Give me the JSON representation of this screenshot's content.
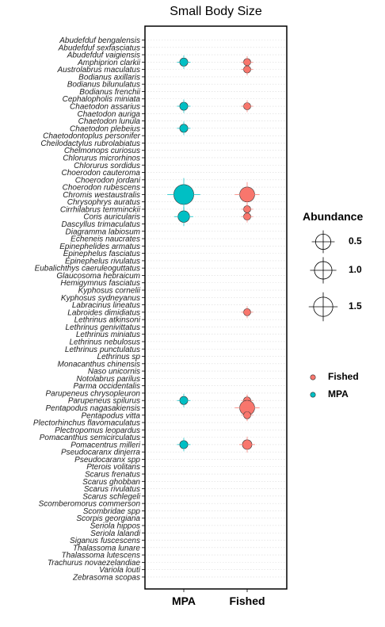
{
  "chart_data": {
    "type": "scatter",
    "title": "Small Body Size",
    "xlabel": "",
    "ylabel": "",
    "categories_x": [
      "MPA",
      "Fished"
    ],
    "species": [
      "Abudefduf bengalensis",
      "Abudefduf sexfasciatus",
      "Abudefduf vaigiensis",
      "Amphiprion clarkii",
      "Austrolabrus maculatus",
      "Bodianus axillaris",
      "Bodianus bilunulatus",
      "Bodianus frenchii",
      "Cephalopholis miniata",
      "Chaetodon assarius",
      "Chaetodon auriga",
      "Chaetodon lunula",
      "Chaetodon plebeius",
      "Chaetodontoplus personifer",
      "Cheilodactylus rubrolabiatus",
      "Chelmonops curiosus",
      "Chlorurus microrhinos",
      "Chlorurus sordidus",
      "Choerodon cauteroma",
      "Choerodon jordani",
      "Choerodon rubescens",
      "Chromis westaustralis",
      "Chrysophrys auratus",
      "Cirrhilabrus temminckii",
      "Coris auricularis",
      "Dascyllus trimaculatus",
      "Diagramma labiosum",
      "Echeneis naucrates",
      "Epinephelides armatus",
      "Epinephelus fasciatus",
      "Epinephelus rivulatus",
      "Eubalichthys caeruleoguttatus",
      "Glaucosoma hebraicum",
      "Hemigymnus fasciatus",
      "Kyphosus cornelii",
      "Kyphosus sydneyanus",
      "Labracinus lineatus",
      "Labroides dimidiatus",
      "Lethrinus atkinsoni",
      "Lethrinus genivittatus",
      "Lethrinus miniatus",
      "Lethrinus nebulosus",
      "Lethrinus punctulatus",
      "Lethrinus sp",
      "Monacanthus chinensis",
      "Naso unicornis",
      "Notolabrus parilus",
      "Parma occidentalis",
      "Parupeneus chrysopleuron",
      "Parupeneus spilurus",
      "Pentapodus nagasakiensis",
      "Pentapodus vitta",
      "Plectorhinchus flavomaculatus",
      "Plectropomus leopardus",
      "Pomacanthus semicirculatus",
      "Pomacentrus milleri",
      "Pseudocaranx dinjerra",
      "Pseudocaranx spp",
      "Pterois volitans",
      "Scarus frenatus",
      "Scarus ghobban",
      "Scarus rivulatus",
      "Scarus schlegeli",
      "Scomberomorus commerson",
      "Scombridae spp",
      "Scorpis georgiana",
      "Seriola hippos",
      "Seriola lalandi",
      "Siganus fuscescens",
      "Thalassoma lunare",
      "Thalassoma lutescens",
      "Trachurus novaezelandiae",
      "Variola louti",
      "Zebrasoma scopas"
    ],
    "series": [
      {
        "name": "MPA",
        "color": "#00BFC4",
        "points": [
          {
            "x": "MPA",
            "y": "Amphiprion clarkii",
            "size": 0.1
          },
          {
            "x": "MPA",
            "y": "Chaetodon assarius",
            "size": 0.1
          },
          {
            "x": "MPA",
            "y": "Chaetodon plebeius",
            "size": 0.1
          },
          {
            "x": "MPA",
            "y": "Chromis westaustralis",
            "size": 2.0
          },
          {
            "x": "MPA",
            "y": "Coris auricularis",
            "size": 0.4
          },
          {
            "x": "MPA",
            "y": "Parupeneus spilurus",
            "size": 0.1
          },
          {
            "x": "MPA",
            "y": "Pomacentrus milleri",
            "size": 0.1
          }
        ]
      },
      {
        "name": "Fished",
        "color": "#F8766D",
        "points": [
          {
            "x": "Fished",
            "y": "Amphiprion clarkii",
            "size": 0.05
          },
          {
            "x": "Fished",
            "y": "Austrolabrus maculatus",
            "size": 0.05
          },
          {
            "x": "Fished",
            "y": "Chaetodon assarius",
            "size": 0.05
          },
          {
            "x": "Fished",
            "y": "Chromis westaustralis",
            "size": 0.9
          },
          {
            "x": "Fished",
            "y": "Cirrhilabrus temminckii",
            "size": 0.05
          },
          {
            "x": "Fished",
            "y": "Coris auricularis",
            "size": 0.05
          },
          {
            "x": "Fished",
            "y": "Labroides dimidiatus",
            "size": 0.05
          },
          {
            "x": "Fished",
            "y": "Parupeneus spilurus",
            "size": 0.05
          },
          {
            "x": "Fished",
            "y": "Pentapodus nagasakiensis",
            "size": 0.9
          },
          {
            "x": "Fished",
            "y": "Pentapodus vitta",
            "size": 0.05
          },
          {
            "x": "Fished",
            "y": "Pomacentrus milleri",
            "size": 0.2
          }
        ]
      }
    ],
    "size_legend": {
      "title": "Abundance",
      "values": [
        0.5,
        1.0,
        1.5
      ],
      "labels": [
        "0.5",
        "1.0",
        "1.5"
      ]
    },
    "color_legend": [
      "Fished",
      "MPA"
    ],
    "grid": true,
    "legend_position": "right"
  }
}
